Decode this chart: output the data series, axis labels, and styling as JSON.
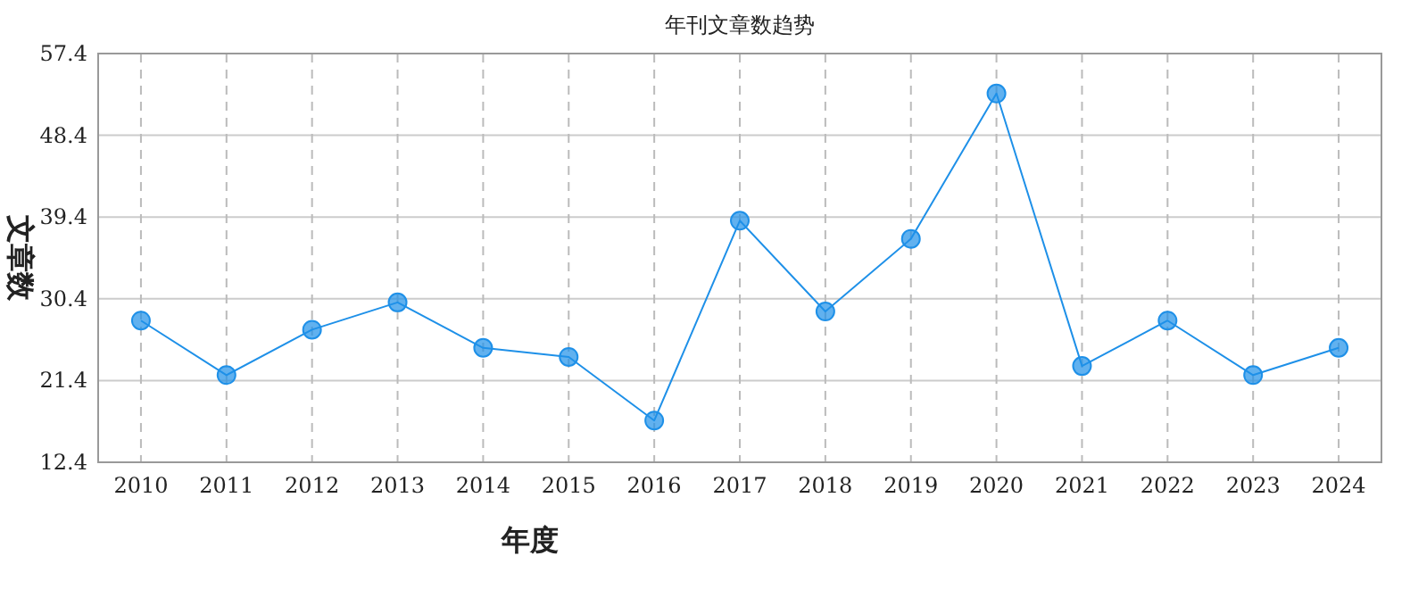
{
  "chart_data": {
    "type": "line",
    "title": "年刊文章数趋势",
    "xlabel": "年度",
    "ylabel": "文章数",
    "categories": [
      "2010",
      "2011",
      "2012",
      "2013",
      "2014",
      "2015",
      "2016",
      "2017",
      "2018",
      "2019",
      "2020",
      "2021",
      "2022",
      "2023",
      "2024"
    ],
    "series": [
      {
        "color": "#1e90e8",
        "values": [
          28,
          22,
          27,
          30,
          25,
          24,
          17,
          39,
          29,
          37,
          53,
          23,
          28,
          22,
          25
        ]
      }
    ],
    "ylim": [
      12.4,
      57.4
    ],
    "yticks": [
      12.4,
      21.4,
      30.4,
      39.4,
      48.4,
      57.4
    ],
    "grid": true,
    "marker": "circle",
    "line_style": "solid"
  }
}
